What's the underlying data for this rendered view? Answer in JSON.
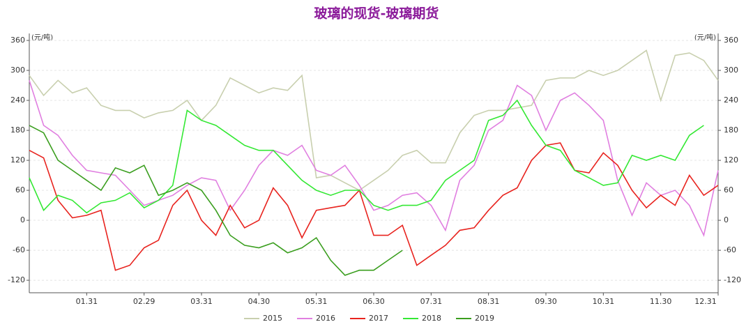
{
  "chart_data": {
    "type": "line",
    "title": "玻璃的现货-玻璃期货",
    "y_unit": "(元/吨)",
    "y2_unit": "(元/吨)",
    "categories": [
      null,
      null,
      null,
      null,
      "01.31",
      null,
      null,
      null,
      "02.29",
      null,
      null,
      null,
      "03.31",
      null,
      null,
      null,
      "04.30",
      null,
      null,
      null,
      "05.31",
      null,
      null,
      null,
      "06.30",
      null,
      null,
      null,
      "07.31",
      null,
      null,
      null,
      "08.31",
      null,
      null,
      null,
      "09.30",
      null,
      null,
      null,
      "10.31",
      null,
      null,
      null,
      "11.30",
      null,
      null,
      null,
      "12.31"
    ],
    "series": [
      {
        "name": "2015",
        "color": "#c8cfae",
        "values": [
          290,
          250,
          280,
          255,
          265,
          230,
          220,
          220,
          205,
          215,
          220,
          240,
          200,
          230,
          285,
          270,
          255,
          265,
          260,
          290,
          85,
          90,
          75,
          60,
          80,
          100,
          130,
          140,
          115,
          115,
          175,
          210,
          220,
          220,
          225,
          230,
          280,
          285,
          285,
          300,
          290,
          300,
          320,
          340,
          240,
          330,
          335,
          320,
          280
        ]
      },
      {
        "name": "2016",
        "color": "#e07fe0",
        "values": [
          280,
          190,
          170,
          130,
          100,
          95,
          90,
          60,
          30,
          40,
          50,
          70,
          85,
          80,
          20,
          60,
          110,
          140,
          130,
          150,
          100,
          90,
          110,
          70,
          20,
          30,
          50,
          55,
          30,
          -20,
          80,
          110,
          180,
          200,
          270,
          250,
          180,
          240,
          255,
          230,
          200,
          80,
          10,
          75,
          50,
          60,
          30,
          -30,
          100
        ]
      },
      {
        "name": "2017",
        "color": "#e8231e",
        "values": [
          140,
          125,
          40,
          5,
          10,
          20,
          -100,
          -90,
          -55,
          -40,
          30,
          60,
          0,
          -30,
          30,
          -15,
          0,
          65,
          30,
          -35,
          20,
          25,
          30,
          60,
          -30,
          -30,
          -10,
          -90,
          -70,
          -50,
          -20,
          -15,
          20,
          50,
          65,
          120,
          150,
          155,
          100,
          95,
          135,
          110,
          60,
          25,
          50,
          30,
          90,
          50,
          70
        ]
      },
      {
        "name": "2018",
        "color": "#33e833",
        "values": [
          85,
          20,
          50,
          40,
          15,
          35,
          40,
          55,
          25,
          40,
          70,
          220,
          200,
          190,
          170,
          150,
          140,
          140,
          110,
          80,
          60,
          50,
          60,
          60,
          30,
          20,
          30,
          30,
          40,
          80,
          100,
          120,
          200,
          210,
          240,
          190,
          150,
          140,
          100,
          85,
          70,
          75,
          130,
          120,
          130,
          120,
          170,
          190,
          null
        ]
      },
      {
        "name": "2019",
        "color": "#3a9e1e",
        "values": [
          190,
          175,
          120,
          100,
          80,
          60,
          105,
          95,
          110,
          50,
          60,
          75,
          60,
          20,
          -30,
          -50,
          -55,
          -45,
          -65,
          -55,
          -35,
          -80,
          -110,
          -100,
          -100,
          -80,
          -60,
          null,
          null,
          null,
          null,
          null,
          null,
          null,
          null,
          null,
          null,
          null,
          null,
          null,
          null,
          null,
          null,
          null,
          null,
          null,
          null,
          null,
          null
        ]
      }
    ],
    "ylim": [
      -145,
      360
    ],
    "yticks": [
      -120,
      -60,
      0,
      60,
      120,
      180,
      240,
      300,
      360
    ],
    "y2lim": [
      -145,
      360
    ],
    "y2ticks": [
      -120,
      -60,
      0,
      60,
      120,
      180,
      240,
      300,
      360
    ],
    "grid": true,
    "legend": "bottom"
  }
}
